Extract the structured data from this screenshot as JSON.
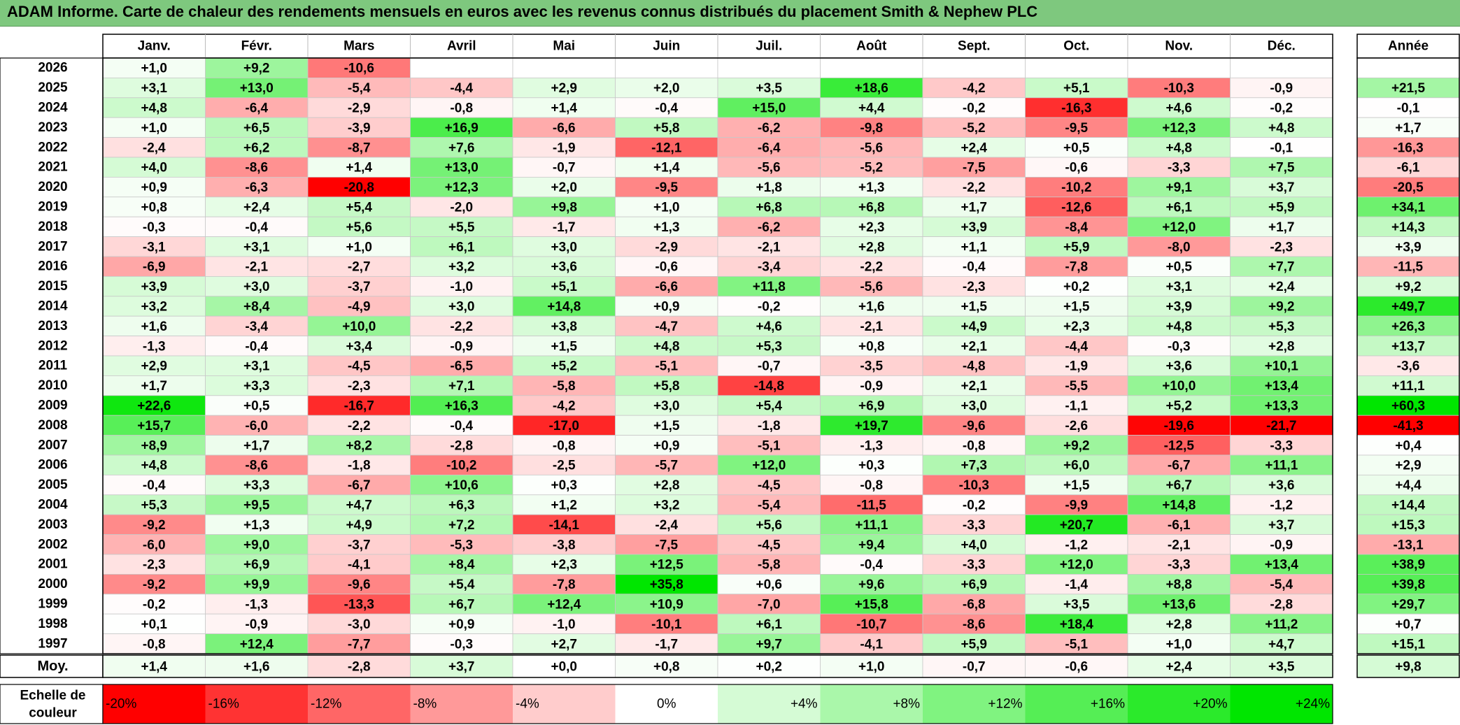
{
  "title": "ADAM Informe. Carte de chaleur des rendements mensuels en euros avec les revenus connus distribués du placement Smith & Nephew PLC",
  "chart_data": {
    "type": "heatmap",
    "months": [
      "Janv.",
      "Févr.",
      "Mars",
      "Avril",
      "Mai",
      "Juin",
      "Juil.",
      "Août",
      "Sept.",
      "Oct.",
      "Nov.",
      "Déc."
    ],
    "year_header": "Année",
    "rows": [
      {
        "year": "2026",
        "values": [
          "+1,0",
          "+9,2",
          "-10,6",
          "",
          "",
          "",
          "",
          "",
          "",
          "",
          "",
          ""
        ],
        "annual": ""
      },
      {
        "year": "2025",
        "values": [
          "+3,1",
          "+13,0",
          "-5,4",
          "-4,4",
          "+2,9",
          "+2,0",
          "+3,5",
          "+18,6",
          "-4,2",
          "+5,1",
          "-10,3",
          "-0,9"
        ],
        "annual": "+21,5"
      },
      {
        "year": "2024",
        "values": [
          "+4,8",
          "-6,4",
          "-2,9",
          "-0,8",
          "+1,4",
          "-0,4",
          "+15,0",
          "+4,4",
          "-0,2",
          "-16,3",
          "+4,6",
          "-0,2"
        ],
        "annual": "-0,1"
      },
      {
        "year": "2023",
        "values": [
          "+1,0",
          "+6,5",
          "-3,9",
          "+16,9",
          "-6,6",
          "+5,8",
          "-6,2",
          "-9,8",
          "-5,2",
          "-9,5",
          "+12,3",
          "+4,8"
        ],
        "annual": "+1,7"
      },
      {
        "year": "2022",
        "values": [
          "-2,4",
          "+6,2",
          "-8,7",
          "+7,6",
          "-1,9",
          "-12,1",
          "-6,4",
          "-5,6",
          "+2,4",
          "+0,5",
          "+4,8",
          "-0,1"
        ],
        "annual": "-16,3"
      },
      {
        "year": "2021",
        "values": [
          "+4,0",
          "-8,6",
          "+1,4",
          "+13,0",
          "-0,7",
          "+1,4",
          "-5,6",
          "-5,2",
          "-7,5",
          "-0,6",
          "-3,3",
          "+7,5"
        ],
        "annual": "-6,1"
      },
      {
        "year": "2020",
        "values": [
          "+0,9",
          "-6,3",
          "-20,8",
          "+12,3",
          "+2,0",
          "-9,5",
          "+1,8",
          "+1,3",
          "-2,2",
          "-10,2",
          "+9,1",
          "+3,7"
        ],
        "annual": "-20,5"
      },
      {
        "year": "2019",
        "values": [
          "+0,8",
          "+2,4",
          "+5,4",
          "-2,0",
          "+9,8",
          "+1,0",
          "+6,8",
          "+6,8",
          "+1,7",
          "-12,6",
          "+6,1",
          "+5,9"
        ],
        "annual": "+34,1"
      },
      {
        "year": "2018",
        "values": [
          "-0,3",
          "-0,4",
          "+5,6",
          "+5,5",
          "-1,7",
          "+1,3",
          "-6,2",
          "+2,3",
          "+3,9",
          "-8,4",
          "+12,0",
          "+1,7"
        ],
        "annual": "+14,3"
      },
      {
        "year": "2017",
        "values": [
          "-3,1",
          "+3,1",
          "+1,0",
          "+6,1",
          "+3,0",
          "-2,9",
          "-2,1",
          "+2,8",
          "+1,1",
          "+5,9",
          "-8,0",
          "-2,3"
        ],
        "annual": "+3,9"
      },
      {
        "year": "2016",
        "values": [
          "-6,9",
          "-2,1",
          "-2,7",
          "+3,2",
          "+3,6",
          "-0,6",
          "-3,4",
          "-2,2",
          "-0,4",
          "-7,8",
          "+0,5",
          "+7,7"
        ],
        "annual": "-11,5"
      },
      {
        "year": "2015",
        "values": [
          "+3,9",
          "+3,0",
          "-3,7",
          "-1,0",
          "+5,1",
          "-6,6",
          "+11,8",
          "-5,6",
          "-2,3",
          "+0,2",
          "+3,1",
          "+2,4"
        ],
        "annual": "+9,2"
      },
      {
        "year": "2014",
        "values": [
          "+3,2",
          "+8,4",
          "-4,9",
          "+3,0",
          "+14,8",
          "+0,9",
          "-0,2",
          "+1,6",
          "+1,5",
          "+1,5",
          "+3,9",
          "+9,2"
        ],
        "annual": "+49,7"
      },
      {
        "year": "2013",
        "values": [
          "+1,6",
          "-3,4",
          "+10,0",
          "-2,2",
          "+3,8",
          "-4,7",
          "+4,6",
          "-2,1",
          "+4,9",
          "+2,3",
          "+4,8",
          "+5,3"
        ],
        "annual": "+26,3"
      },
      {
        "year": "2012",
        "values": [
          "-1,3",
          "-0,4",
          "+3,4",
          "-0,9",
          "+1,5",
          "+4,8",
          "+5,3",
          "+0,8",
          "+2,1",
          "-4,4",
          "-0,3",
          "+2,8"
        ],
        "annual": "+13,7"
      },
      {
        "year": "2011",
        "values": [
          "+2,9",
          "+3,1",
          "-4,5",
          "-6,5",
          "+5,2",
          "-5,1",
          "-0,7",
          "-3,5",
          "-4,8",
          "-1,9",
          "+3,6",
          "+10,1"
        ],
        "annual": "-3,6"
      },
      {
        "year": "2010",
        "values": [
          "+1,7",
          "+3,3",
          "-2,3",
          "+7,1",
          "-5,8",
          "+5,8",
          "-14,8",
          "-0,9",
          "+2,1",
          "-5,5",
          "+10,0",
          "+13,4"
        ],
        "annual": "+11,1"
      },
      {
        "year": "2009",
        "values": [
          "+22,6",
          "+0,5",
          "-16,7",
          "+16,3",
          "-4,2",
          "+3,0",
          "+5,4",
          "+6,9",
          "+3,0",
          "-1,1",
          "+5,2",
          "+13,3"
        ],
        "annual": "+60,3"
      },
      {
        "year": "2008",
        "values": [
          "+15,7",
          "-6,0",
          "-2,2",
          "-0,4",
          "-17,0",
          "+1,5",
          "-1,8",
          "+19,7",
          "-9,6",
          "-2,6",
          "-19,6",
          "-21,7"
        ],
        "annual": "-41,3"
      },
      {
        "year": "2007",
        "values": [
          "+8,9",
          "+1,7",
          "+8,2",
          "-2,8",
          "-0,8",
          "+0,9",
          "-5,1",
          "-1,3",
          "-0,8",
          "+9,2",
          "-12,5",
          "-3,3"
        ],
        "annual": "+0,4"
      },
      {
        "year": "2006",
        "values": [
          "+4,8",
          "-8,6",
          "-1,8",
          "-10,2",
          "-2,5",
          "-5,7",
          "+12,0",
          "+0,3",
          "+7,3",
          "+6,0",
          "-6,7",
          "+11,1"
        ],
        "annual": "+2,9"
      },
      {
        "year": "2005",
        "values": [
          "-0,4",
          "+3,3",
          "-6,7",
          "+10,6",
          "+0,3",
          "+2,8",
          "-4,5",
          "-0,8",
          "-10,3",
          "+1,5",
          "+6,7",
          "+3,6"
        ],
        "annual": "+4,4"
      },
      {
        "year": "2004",
        "values": [
          "+5,3",
          "+9,5",
          "+4,7",
          "+6,3",
          "+1,2",
          "+3,2",
          "-5,4",
          "-11,5",
          "-0,2",
          "-9,9",
          "+14,8",
          "-1,2"
        ],
        "annual": "+14,4"
      },
      {
        "year": "2003",
        "values": [
          "-9,2",
          "+1,3",
          "+4,9",
          "+7,2",
          "-14,1",
          "-2,4",
          "+5,6",
          "+11,1",
          "-3,3",
          "+20,7",
          "-6,1",
          "+3,7"
        ],
        "annual": "+15,3"
      },
      {
        "year": "2002",
        "values": [
          "-6,0",
          "+9,0",
          "-3,7",
          "-5,3",
          "-3,8",
          "-7,5",
          "-4,5",
          "+9,4",
          "+4,0",
          "-1,2",
          "-2,1",
          "-0,9"
        ],
        "annual": "-13,1"
      },
      {
        "year": "2001",
        "values": [
          "-2,3",
          "+6,9",
          "-4,1",
          "+8,4",
          "+2,3",
          "+12,5",
          "-5,8",
          "-0,4",
          "-3,3",
          "+12,0",
          "-3,3",
          "+13,4"
        ],
        "annual": "+38,9"
      },
      {
        "year": "2000",
        "values": [
          "-9,2",
          "+9,9",
          "-9,6",
          "+5,4",
          "-7,8",
          "+35,8",
          "+0,6",
          "+9,6",
          "+6,9",
          "-1,4",
          "+8,8",
          "-5,4"
        ],
        "annual": "+39,8"
      },
      {
        "year": "1999",
        "values": [
          "-0,2",
          "-1,3",
          "-13,3",
          "+6,7",
          "+12,4",
          "+10,9",
          "-7,0",
          "+15,8",
          "-6,8",
          "+3,5",
          "+13,6",
          "-2,8"
        ],
        "annual": "+29,7"
      },
      {
        "year": "1998",
        "values": [
          "+0,1",
          "-0,9",
          "-3,0",
          "+0,9",
          "-1,0",
          "-10,1",
          "+6,1",
          "-10,7",
          "-8,6",
          "+18,4",
          "+2,8",
          "+11,2"
        ],
        "annual": "+0,7"
      },
      {
        "year": "1997",
        "values": [
          "-0,8",
          "+12,4",
          "-7,7",
          "-0,3",
          "+2,7",
          "-1,7",
          "+9,7",
          "-4,1",
          "+5,9",
          "-5,1",
          "+1,0",
          "+4,7"
        ],
        "annual": "+15,1"
      }
    ],
    "average": {
      "label": "Moy.",
      "values": [
        "+1,4",
        "+1,6",
        "-2,8",
        "+3,7",
        "+0,0",
        "+0,8",
        "+0,2",
        "+1,0",
        "-0,7",
        "-0,6",
        "+2,4",
        "+3,5"
      ],
      "annual": "+9,8"
    },
    "scale": {
      "label_lines": [
        "Echelle de",
        "couleur"
      ],
      "stops": [
        {
          "label": "-20%",
          "value": -20,
          "align": "left"
        },
        {
          "label": "-16%",
          "value": -16,
          "align": "left"
        },
        {
          "label": "-12%",
          "value": -12,
          "align": "left"
        },
        {
          "label": "-8%",
          "value": -8,
          "align": "left"
        },
        {
          "label": "-4%",
          "value": -4,
          "align": "left"
        },
        {
          "label": "0%",
          "value": 0,
          "align": "center"
        },
        {
          "label": "+4%",
          "value": 4,
          "align": "right"
        },
        {
          "label": "+8%",
          "value": 8,
          "align": "right"
        },
        {
          "label": "+12%",
          "value": 12,
          "align": "right"
        },
        {
          "label": "+16%",
          "value": 16,
          "align": "right"
        },
        {
          "label": "+20%",
          "value": 20,
          "align": "right"
        },
        {
          "label": "+24%",
          "value": 24,
          "align": "right"
        }
      ]
    },
    "colors": {
      "negative_max": "#ff0000",
      "positive_max": "#00e600",
      "neutral": "#ffffff",
      "title_bar": "#7ec87e"
    }
  }
}
